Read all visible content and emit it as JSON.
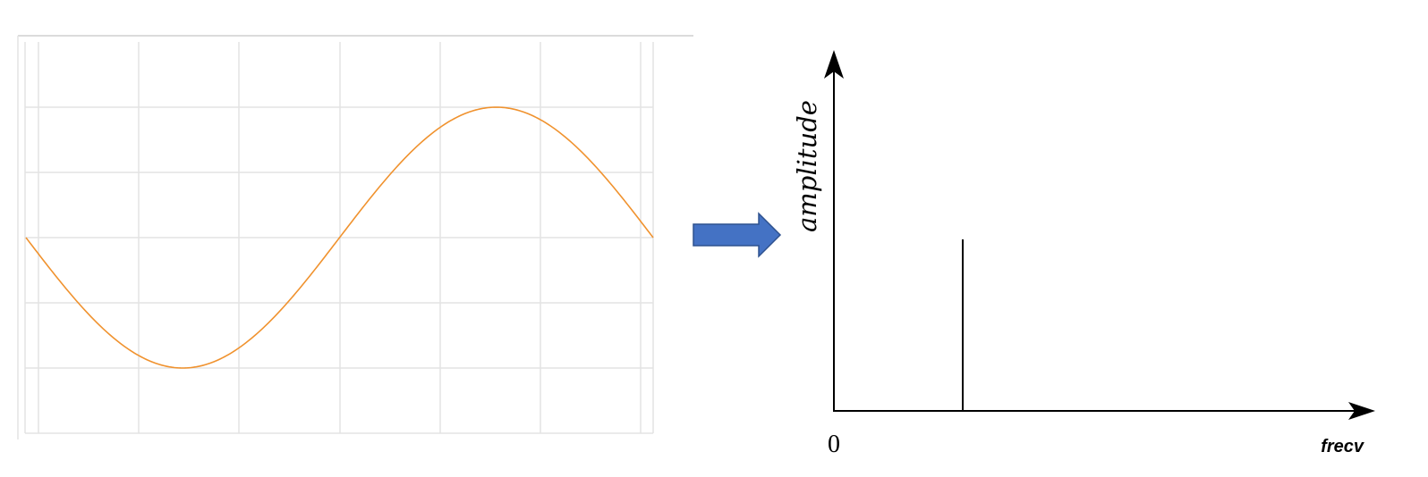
{
  "time_panel": {
    "signal": {
      "shape": "sine",
      "phase": "starts at midline, falls to minimum, rises to maximum, returns to midline",
      "cycles": 1
    },
    "grid": true,
    "colors": {
      "wave": "#f0922e",
      "grid": "#e3e3e3"
    }
  },
  "transform_arrow": {
    "color": "#4472c4",
    "direction": "right"
  },
  "spectrum_panel": {
    "y_axis_label": "amplitude",
    "x_axis_label": "frecv",
    "origin_label": "0",
    "spike": {
      "frequency": 1,
      "amplitude": 0.5
    }
  }
}
